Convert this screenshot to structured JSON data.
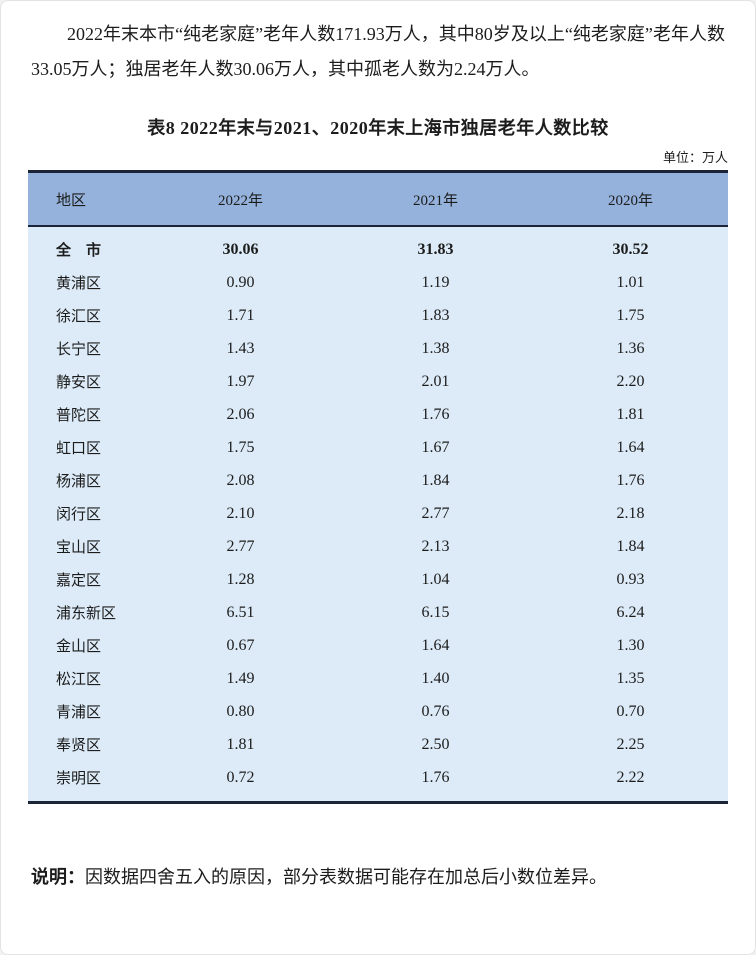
{
  "intro": {
    "text": "2022年末本市“纯老家庭”老年人数171.93万人，其中80岁及以上“纯老家庭”老年人数33.05万人；独居老年人数30.06万人，其中孤老人数为2.24万人。"
  },
  "table": {
    "title": "表8  2022年末与2021、2020年末上海市独居老年人数比较",
    "unit": "单位：万人",
    "columns": {
      "region": "地区",
      "y2022": "2022年",
      "y2021": "2021年",
      "y2020": "2020年"
    },
    "total_row": {
      "region": "全　市",
      "values": [
        "30.06",
        "31.83",
        "30.52"
      ]
    },
    "rows": [
      {
        "region": "黄浦区",
        "values": [
          "0.90",
          "1.19",
          "1.01"
        ]
      },
      {
        "region": "徐汇区",
        "values": [
          "1.71",
          "1.83",
          "1.75"
        ]
      },
      {
        "region": "长宁区",
        "values": [
          "1.43",
          "1.38",
          "1.36"
        ]
      },
      {
        "region": "静安区",
        "values": [
          "1.97",
          "2.01",
          "2.20"
        ]
      },
      {
        "region": "普陀区",
        "values": [
          "2.06",
          "1.76",
          "1.81"
        ]
      },
      {
        "region": "虹口区",
        "values": [
          "1.75",
          "1.67",
          "1.64"
        ]
      },
      {
        "region": "杨浦区",
        "values": [
          "2.08",
          "1.84",
          "1.76"
        ]
      },
      {
        "region": "闵行区",
        "values": [
          "2.10",
          "2.77",
          "2.18"
        ]
      },
      {
        "region": "宝山区",
        "values": [
          "2.77",
          "2.13",
          "1.84"
        ]
      },
      {
        "region": "嘉定区",
        "values": [
          "1.28",
          "1.04",
          "0.93"
        ]
      },
      {
        "region": "浦东新区",
        "values": [
          "6.51",
          "6.15",
          "6.24"
        ]
      },
      {
        "region": "金山区",
        "values": [
          "0.67",
          "1.64",
          "1.30"
        ]
      },
      {
        "region": "松江区",
        "values": [
          "1.49",
          "1.40",
          "1.35"
        ]
      },
      {
        "region": "青浦区",
        "values": [
          "0.80",
          "0.76",
          "0.70"
        ]
      },
      {
        "region": "奉贤区",
        "values": [
          "1.81",
          "2.50",
          "2.25"
        ]
      },
      {
        "region": "崇明区",
        "values": [
          "0.72",
          "1.76",
          "2.22"
        ]
      }
    ],
    "colors": {
      "header_bg": "#94b2db",
      "body_bg": "#dcebf7",
      "rule": "#1c2537"
    }
  },
  "note": {
    "label": "说明：",
    "text": "因数据四舍五入的原因，部分表数据可能存在加总后小数位差异。"
  }
}
